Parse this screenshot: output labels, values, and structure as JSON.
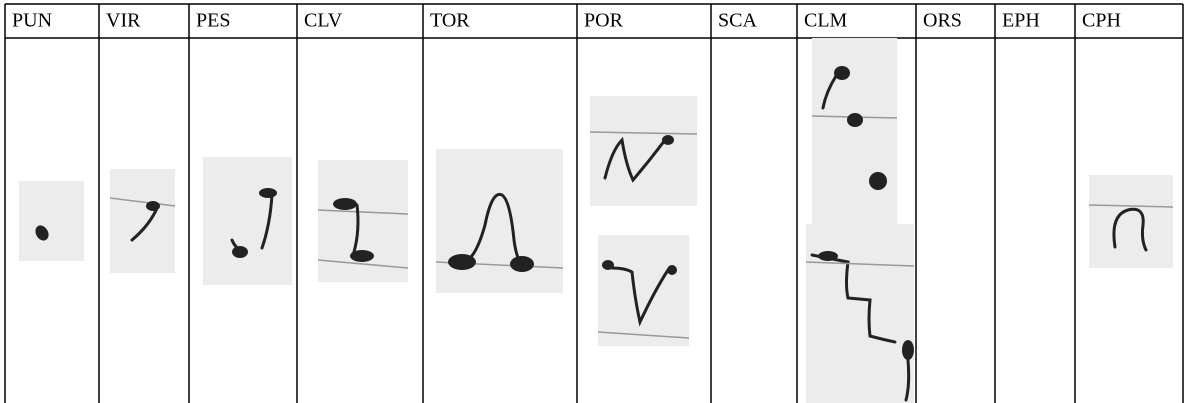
{
  "table": {
    "headers": [
      "PUN",
      "VIR",
      "PES",
      "CLV",
      "TOR",
      "POR",
      "SCA",
      "CLM",
      "ORS",
      "EPH",
      "CPH"
    ]
  }
}
